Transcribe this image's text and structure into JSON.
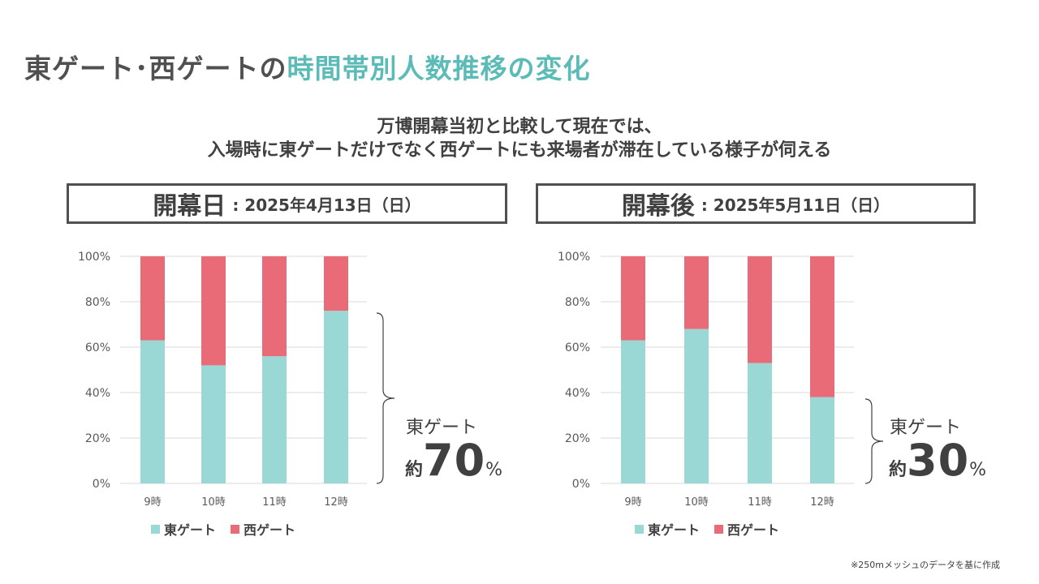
{
  "title": {
    "part1": "東ゲート･西ゲートの",
    "part2": "時間帯別人数推移の変化"
  },
  "subtitle": {
    "line1": "万博開幕当初と比較して現在では、",
    "line2": "入場時に東ゲートだけでなく西ゲートにも来場者が滞在している様子が伺える"
  },
  "colors": {
    "east": "#99d8d4",
    "west": "#e96b78",
    "accent": "#5bbbb6",
    "grid": "#d9d9d9",
    "frame": "#505050"
  },
  "panels": [
    {
      "heading": "開幕日",
      "date": ": 2025年4月13日（日）",
      "annotation": {
        "label": "東ゲート",
        "prefix": "約",
        "value": "70",
        "unit": "%"
      }
    },
    {
      "heading": "開幕後",
      "date": ": 2025年5月11日（日）",
      "annotation": {
        "label": "東ゲート",
        "prefix": "約",
        "value": "30",
        "unit": "%"
      }
    }
  ],
  "chart_data": [
    {
      "type": "bar",
      "stacked": true,
      "categories": [
        "9時",
        "10時",
        "11時",
        "12時"
      ],
      "series": [
        {
          "name": "東ゲート",
          "values": [
            63,
            52,
            56,
            76
          ]
        },
        {
          "name": "西ゲート",
          "values": [
            37,
            48,
            44,
            24
          ]
        }
      ],
      "yticks": [
        "0%",
        "20%",
        "40%",
        "60%",
        "80%",
        "100%"
      ],
      "ylim": [
        0,
        100
      ],
      "grid": true,
      "legend": "bottom"
    },
    {
      "type": "bar",
      "stacked": true,
      "categories": [
        "9時",
        "10時",
        "11時",
        "12時"
      ],
      "series": [
        {
          "name": "東ゲート",
          "values": [
            63,
            68,
            53,
            38
          ]
        },
        {
          "name": "西ゲート",
          "values": [
            37,
            32,
            47,
            62
          ]
        }
      ],
      "yticks": [
        "0%",
        "20%",
        "40%",
        "60%",
        "80%",
        "100%"
      ],
      "ylim": [
        0,
        100
      ],
      "grid": true,
      "legend": "bottom"
    }
  ],
  "footnote": "※250mメッシュのデータを基に作成"
}
